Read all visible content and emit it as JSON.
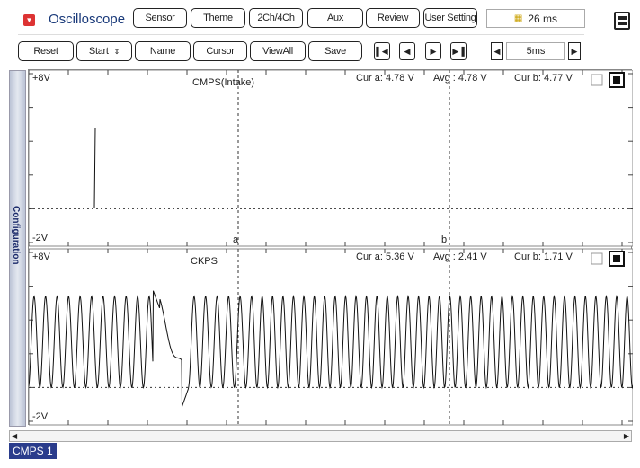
{
  "app": {
    "title": "Oscilloscope",
    "logo_icon": "dropdown-icon"
  },
  "menu": [
    "Sensor",
    "Theme",
    "2Ch/4Ch",
    "Aux",
    "Review",
    "User Setting"
  ],
  "time_display": {
    "icon": "timer-icon",
    "value": "26 ms"
  },
  "toolbar": {
    "reset": "Reset",
    "start": "Start",
    "name": "Name",
    "cursor": "Cursor",
    "viewall": "ViewAll",
    "save": "Save"
  },
  "nav_icons": [
    "first-icon",
    "prev-icon",
    "next-icon",
    "last-icon"
  ],
  "timebase": {
    "value": "5ms"
  },
  "sidebar": {
    "label": "Configuration"
  },
  "channels": [
    {
      "name": "CMPS(Intake)",
      "ymax": "+8V",
      "ymin": "-2V",
      "cur_a": "Cur a: 4.78 V",
      "avg": "Avg  : 4.78 V",
      "cur_b": "Cur b: 4.77 V"
    },
    {
      "name": "CKPS",
      "ymax": "+8V",
      "ymin": "-2V",
      "cur_a": "Cur a: 5.36 V",
      "avg": "Avg  : 2.41 V",
      "cur_b": "Cur b: 1.71 V"
    }
  ],
  "cursors": {
    "a": "a",
    "b": "b"
  },
  "status": {
    "label": "CMPS 1"
  }
}
